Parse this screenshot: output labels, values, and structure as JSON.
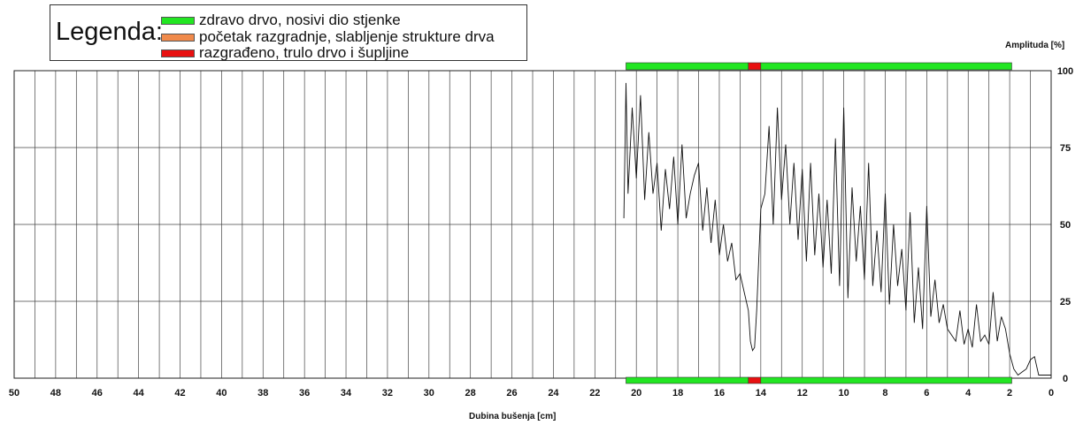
{
  "legend": {
    "title": "Legenda:",
    "items": [
      {
        "label": "zdravo drvo, nosivi dio stjenke",
        "color": "#22e622"
      },
      {
        "label": "početak razgradnje, slabljenje strukture drva",
        "color": "#f08a4b"
      },
      {
        "label": "razgrađeno, trulo drvo i šupljine",
        "color": "#e81010"
      }
    ]
  },
  "chart_data": {
    "type": "line",
    "xlabel": "Dubina bušenja [cm]",
    "ylabel": "Amplituda [%]",
    "xlim": [
      50,
      0
    ],
    "ylim": [
      0,
      100
    ],
    "x_ticks": [
      50,
      48,
      46,
      44,
      42,
      40,
      38,
      36,
      34,
      32,
      30,
      28,
      26,
      24,
      22,
      20,
      18,
      16,
      14,
      12,
      10,
      8,
      6,
      4,
      2,
      0
    ],
    "y_ticks": [
      0,
      25,
      50,
      75,
      100
    ],
    "grid": true,
    "condition_bars": [
      {
        "from": 20.5,
        "to": 14.6,
        "state": "zdravo drvo, nosivi dio stjenke"
      },
      {
        "from": 14.6,
        "to": 14.0,
        "state": "razgrađeno, trulo drvo i šupljine"
      },
      {
        "from": 14.0,
        "to": 1.9,
        "state": "zdravo drvo, nosivi dio stjenke"
      }
    ],
    "series": [
      {
        "x": [
          20.6,
          20.5,
          20.4,
          20.2,
          20.0,
          19.8,
          19.6,
          19.4,
          19.2,
          19.0,
          18.8,
          18.6,
          18.4,
          18.2,
          18.0,
          17.8,
          17.6,
          17.4,
          17.2,
          17.0,
          16.8,
          16.6,
          16.4,
          16.2,
          16.0,
          15.8,
          15.6,
          15.4,
          15.2,
          15.0,
          14.8,
          14.6,
          14.5,
          14.4,
          14.3,
          14.2,
          14.0,
          13.8,
          13.6,
          13.4,
          13.2,
          13.0,
          12.8,
          12.6,
          12.4,
          12.2,
          12.0,
          11.8,
          11.6,
          11.4,
          11.2,
          11.0,
          10.8,
          10.6,
          10.4,
          10.2,
          10.0,
          9.8,
          9.6,
          9.4,
          9.2,
          9.0,
          8.8,
          8.6,
          8.4,
          8.2,
          8.0,
          7.8,
          7.6,
          7.4,
          7.2,
          7.0,
          6.8,
          6.6,
          6.4,
          6.2,
          6.0,
          5.8,
          5.6,
          5.4,
          5.2,
          5.0,
          4.8,
          4.6,
          4.4,
          4.2,
          4.0,
          3.8,
          3.6,
          3.4,
          3.2,
          3.0,
          2.8,
          2.6,
          2.4,
          2.2,
          2.0,
          1.8,
          1.6,
          1.4,
          1.2,
          1.0,
          0.8,
          0.6,
          0.4,
          0.2,
          0.0
        ],
        "y": [
          52,
          96,
          60,
          88,
          65,
          92,
          58,
          80,
          60,
          70,
          48,
          68,
          55,
          72,
          50,
          76,
          52,
          60,
          66,
          70,
          48,
          62,
          44,
          58,
          40,
          50,
          38,
          44,
          32,
          34,
          28,
          22,
          12,
          9,
          10,
          22,
          55,
          60,
          82,
          50,
          88,
          58,
          76,
          50,
          70,
          45,
          68,
          38,
          70,
          40,
          60,
          36,
          58,
          34,
          78,
          30,
          88,
          26,
          62,
          38,
          56,
          32,
          70,
          30,
          48,
          28,
          60,
          24,
          50,
          30,
          42,
          22,
          54,
          18,
          36,
          16,
          56,
          20,
          32,
          18,
          24,
          16,
          14,
          12,
          22,
          11,
          16,
          10,
          24,
          12,
          14,
          11,
          28,
          12,
          20,
          16,
          8,
          3,
          1,
          2,
          3,
          6,
          7,
          1,
          1,
          1,
          1
        ]
      }
    ]
  }
}
